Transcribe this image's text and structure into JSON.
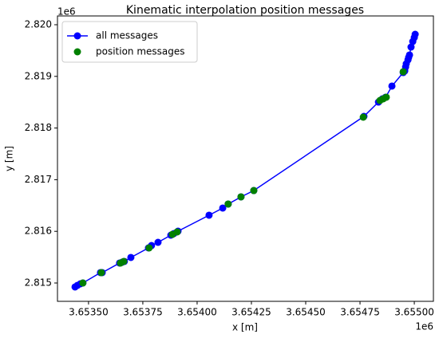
{
  "chart_data": {
    "type": "line",
    "title": "Kinematic interpolation position messages",
    "x_label": "x [m]",
    "y_label": "y [m]",
    "x_offset_label": "1e6",
    "y_offset_label": "1e6",
    "xlim": [
      3.653357,
      3.655088
    ],
    "ylim": [
      2.814645,
      2.82017
    ],
    "xticks": [
      {
        "value": 3.6535,
        "label": "3.65350"
      },
      {
        "value": 3.65375,
        "label": "3.65375"
      },
      {
        "value": 3.654,
        "label": "3.65400"
      },
      {
        "value": 3.65425,
        "label": "3.65425"
      },
      {
        "value": 3.6545,
        "label": "3.65450"
      },
      {
        "value": 3.65475,
        "label": "3.65475"
      },
      {
        "value": 3.655,
        "label": "3.65500"
      }
    ],
    "yticks": [
      2.815,
      2.816,
      2.817,
      2.818,
      2.819,
      {
        "value": 2.82,
        "label": "2.820"
      }
    ],
    "grid": false,
    "legend": "upper left",
    "series": [
      {
        "name": "all messages",
        "color": "#0000ff",
        "mode": "line+marker",
        "x": [
          3.653438,
          3.653449,
          3.653463,
          3.653474,
          3.653555,
          3.653563,
          3.653643,
          3.653654,
          3.653665,
          3.653695,
          3.653776,
          3.65379,
          3.65382,
          3.653879,
          3.653893,
          3.653912,
          3.654055,
          3.654118,
          3.654143,
          3.654202,
          3.654261,
          3.654768,
          3.654835,
          3.654853,
          3.654868,
          3.654897,
          3.654949,
          3.654956,
          3.65496,
          3.654963,
          3.654971,
          3.654974,
          3.654978,
          3.654985,
          3.654993,
          3.655,
          3.655004
        ],
        "values": [
          2.814923,
          2.814954,
          2.814985,
          2.815,
          2.815201,
          2.815201,
          2.815386,
          2.815401,
          2.815417,
          2.815494,
          2.815679,
          2.815725,
          2.815787,
          2.815926,
          2.815957,
          2.816003,
          2.816312,
          2.816451,
          2.816528,
          2.816667,
          2.81679,
          2.818225,
          2.818503,
          2.818565,
          2.818596,
          2.818812,
          2.819074,
          2.819105,
          2.819182,
          2.819244,
          2.819321,
          2.819367,
          2.819414,
          2.819568,
          2.819676,
          2.819753,
          2.819815
        ]
      },
      {
        "name": "position messages",
        "color": "#008000",
        "mode": "marker",
        "x": [
          3.653474,
          3.653559,
          3.653647,
          3.653662,
          3.653779,
          3.653886,
          3.653908,
          3.654143,
          3.654202,
          3.654261,
          3.654765,
          3.654842,
          3.654857,
          3.654871,
          3.654949
        ],
        "values": [
          2.815,
          2.815201,
          2.815386,
          2.815417,
          2.815679,
          2.815941,
          2.815988,
          2.816528,
          2.816667,
          2.81679,
          2.81821,
          2.818534,
          2.818565,
          2.818596,
          2.81909
        ]
      }
    ]
  }
}
